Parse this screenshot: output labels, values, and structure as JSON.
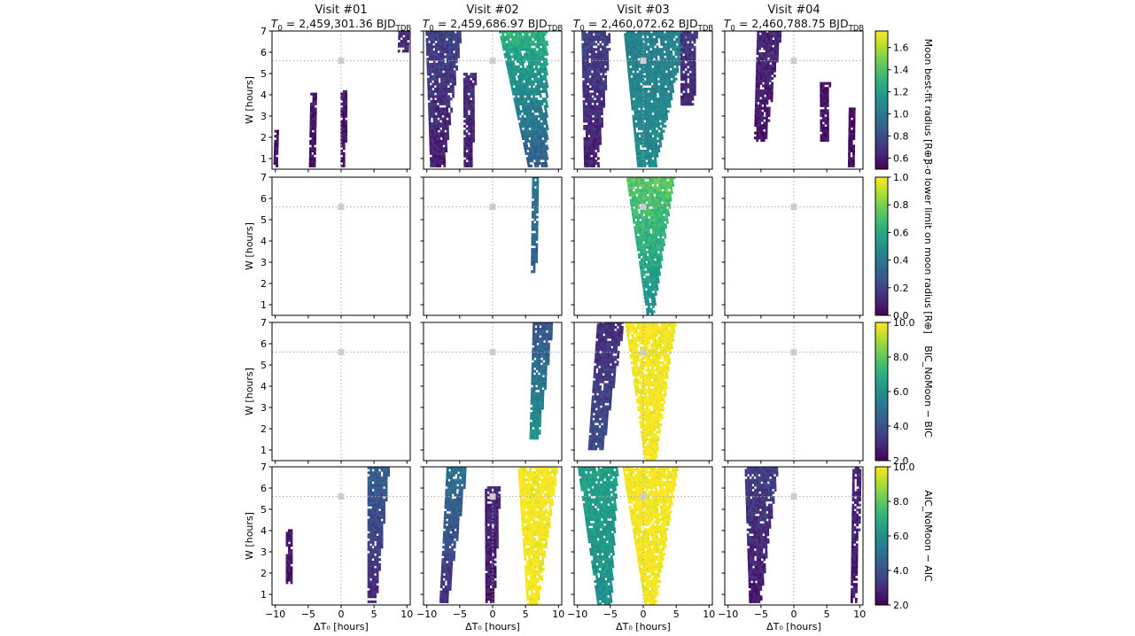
{
  "chart_data": {
    "type": "heatmap",
    "layout": "4x4 grid of panels",
    "columns": [
      {
        "title": "Visit #01",
        "t0_value": "2,459,301.36"
      },
      {
        "title": "Visit #02",
        "t0_value": "2,459,686.97"
      },
      {
        "title": "Visit #03",
        "t0_value": "2,460,072.62"
      },
      {
        "title": "Visit #04",
        "t0_value": "2,460,788.75"
      }
    ],
    "t0_prefix": "T",
    "t0_prefix_sub": "0",
    "t0_unit": "BJD",
    "t0_unit_sub": "TDB",
    "xlabel": "ΔT₀ [hours]",
    "ylabel": "W [hours]",
    "xlim": [
      -10.5,
      10.5
    ],
    "ylim": [
      0.5,
      7
    ],
    "xticks": [
      -10,
      -5,
      0,
      5,
      10
    ],
    "yticks": [
      1,
      2,
      3,
      4,
      5,
      6,
      7
    ],
    "reference_point": {
      "x": 0,
      "y": 5.6
    },
    "grid": "dotted reference lines at x=0 and y=5.6",
    "colormap": "viridis",
    "rows": [
      {
        "colorbar_label": "Moon best-fit radius [R⊕]",
        "clim": [
          0.5,
          1.75
        ],
        "colorbar_ticks": [
          "0.6",
          "0.8",
          "1.0",
          "1.2",
          "1.4",
          "1.6"
        ],
        "colorbar_tick_values": [
          0.6,
          0.8,
          1.0,
          1.2,
          1.4,
          1.6
        ],
        "panels": [
          {
            "regions": [
              {
                "wmin": 0.6,
                "wmax": 2.3,
                "cx0": -10,
                "cx1": -9.4,
                "hw0": 0.3,
                "hw1": 0.3,
                "v0": 0.55,
                "v1": 0.6
              },
              {
                "wmin": 0.6,
                "wmax": 4.0,
                "cx0": -4.5,
                "cx1": -4.0,
                "hw0": 0.4,
                "hw1": 0.5,
                "v0": 0.55,
                "v1": 0.62
              },
              {
                "wmin": 0.6,
                "wmax": 4.2,
                "cx0": 0.2,
                "cx1": 0.4,
                "hw0": 0.3,
                "hw1": 0.5,
                "v0": 0.55,
                "v1": 0.62
              },
              {
                "wmin": 6.0,
                "wmax": 7.0,
                "cx0": 8.5,
                "cx1": 9.5,
                "hw0": 0.5,
                "hw1": 0.8,
                "v0": 0.6,
                "v1": 0.65
              }
            ]
          },
          {
            "regions": [
              {
                "wmin": 0.6,
                "wmax": 7.0,
                "cx0": -8.5,
                "cx1": -7.5,
                "hw0": 1.0,
                "hw1": 2.7,
                "v0": 0.6,
                "v1": 0.75
              },
              {
                "wmin": 0.6,
                "wmax": 5.0,
                "cx0": -3.8,
                "cx1": -3.5,
                "hw0": 0.6,
                "hw1": 1.0,
                "v0": 0.6,
                "v1": 0.7
              },
              {
                "wmin": 0.6,
                "wmax": 7.0,
                "cx0": 6.8,
                "cx1": 4.5,
                "hw0": 1.4,
                "hw1": 3.6,
                "v0": 0.85,
                "v1": 1.3
              }
            ]
          },
          {
            "regions": [
              {
                "wmin": 0.6,
                "wmax": 7.0,
                "cx0": -8.0,
                "cx1": -7.2,
                "hw0": 1.0,
                "hw1": 2.2,
                "v0": 0.6,
                "v1": 0.75
              },
              {
                "wmin": 0.6,
                "wmax": 7.0,
                "cx0": 0.4,
                "cx1": 1.8,
                "hw0": 1.3,
                "hw1": 4.8,
                "v0": 1.1,
                "v1": 1.05
              },
              {
                "wmin": 3.5,
                "wmax": 7.0,
                "cx0": 6.5,
                "cx1": 6.8,
                "hw0": 0.8,
                "hw1": 1.2,
                "v0": 0.6,
                "v1": 0.7
              }
            ]
          },
          {
            "regions": [
              {
                "wmin": 1.8,
                "wmax": 7.0,
                "cx0": -5.6,
                "cx1": -3.8,
                "hw0": 0.6,
                "hw1": 1.8,
                "v0": 0.55,
                "v1": 0.65
              },
              {
                "wmin": 1.8,
                "wmax": 4.5,
                "cx0": 4.5,
                "cx1": 4.7,
                "hw0": 0.5,
                "hw1": 0.8,
                "v0": 0.55,
                "v1": 0.6
              },
              {
                "wmin": 0.6,
                "wmax": 3.3,
                "cx0": 8.6,
                "cx1": 9.0,
                "hw0": 0.4,
                "hw1": 0.5,
                "v0": 0.55,
                "v1": 0.6
              }
            ]
          }
        ]
      },
      {
        "colorbar_label": "3-σ lower limit on moon radius [R⊕]",
        "clim": [
          0.0,
          1.0
        ],
        "colorbar_ticks": [
          "0.0",
          "0.2",
          "0.4",
          "0.6",
          "0.8",
          "1.0"
        ],
        "colorbar_tick_values": [
          0.0,
          0.2,
          0.4,
          0.6,
          0.8,
          1.0
        ],
        "panels": [
          {
            "regions": []
          },
          {
            "regions": [
              {
                "wmin": 2.5,
                "wmax": 7.0,
                "cx0": 6.0,
                "cx1": 6.4,
                "hw0": 0.3,
                "hw1": 0.4,
                "v0": 0.25,
                "v1": 0.4
              }
            ]
          },
          {
            "regions": [
              {
                "wmin": 0.5,
                "wmax": 7.0,
                "cx0": 1.0,
                "cx1": 1.0,
                "hw0": 0.5,
                "hw1": 3.6,
                "v0": 0.5,
                "v1": 0.75
              }
            ]
          },
          {
            "regions": []
          }
        ]
      },
      {
        "colorbar_label": "BIC_NoMoon − BIC",
        "clim": [
          2.0,
          10.0
        ],
        "colorbar_ticks": [
          "2.0",
          "4.0",
          "6.0",
          "8.0",
          "10.0"
        ],
        "colorbar_tick_values": [
          2.0,
          4.0,
          6.0,
          8.0,
          10.0
        ],
        "panels": [
          {
            "regions": []
          },
          {
            "regions": [
              {
                "wmin": 1.5,
                "wmax": 7.0,
                "cx0": 6.0,
                "cx1": 7.6,
                "hw0": 0.5,
                "hw1": 1.5,
                "v0": 6.5,
                "v1": 4.0
              }
            ]
          },
          {
            "regions": [
              {
                "wmin": 0.5,
                "wmax": 7.0,
                "cx0": 1.0,
                "cx1": 1.0,
                "hw0": 0.8,
                "hw1": 3.8,
                "v0": 10.0,
                "v1": 10.0
              },
              {
                "wmin": 1.0,
                "wmax": 7.0,
                "cx0": -7.5,
                "cx1": -5.0,
                "hw0": 1.0,
                "hw1": 2.0,
                "v0": 4.0,
                "v1": 3.0
              }
            ]
          },
          {
            "regions": []
          }
        ]
      },
      {
        "colorbar_label": "AIC_NoMoon − AIC",
        "clim": [
          2.0,
          10.0
        ],
        "colorbar_ticks": [
          "2.0",
          "4.0",
          "6.0",
          "8.0",
          "10.0"
        ],
        "colorbar_tick_values": [
          2.0,
          4.0,
          6.0,
          8.0,
          10.0
        ],
        "panels": [
          {
            "regions": [
              {
                "wmin": 0.6,
                "wmax": 7.0,
                "cx0": 4.6,
                "cx1": 5.6,
                "hw0": 0.6,
                "hw1": 1.6,
                "v0": 2.8,
                "v1": 4.5
              },
              {
                "wmin": 1.5,
                "wmax": 4.0,
                "cx0": -8.0,
                "cx1": -8.0,
                "hw0": 0.4,
                "hw1": 0.4,
                "v0": 2.5,
                "v1": 2.5
              }
            ]
          },
          {
            "regions": [
              {
                "wmin": 0.5,
                "wmax": 7.0,
                "cx0": 6.0,
                "cx1": 6.8,
                "hw0": 0.8,
                "hw1": 3.0,
                "v0": 10.0,
                "v1": 10.0
              },
              {
                "wmin": 0.6,
                "wmax": 7.0,
                "cx0": -7.5,
                "cx1": -5.5,
                "hw0": 0.6,
                "hw1": 1.5,
                "v0": 3.0,
                "v1": 5.0
              },
              {
                "wmin": 0.6,
                "wmax": 6.0,
                "cx0": -0.5,
                "cx1": 0.0,
                "hw0": 0.6,
                "hw1": 1.2,
                "v0": 2.5,
                "v1": 3.0
              }
            ]
          },
          {
            "regions": [
              {
                "wmin": 0.5,
                "wmax": 7.0,
                "cx0": 1.0,
                "cx1": 1.0,
                "hw0": 0.8,
                "hw1": 4.2,
                "v0": 10.0,
                "v1": 10.0
              },
              {
                "wmin": 0.5,
                "wmax": 7.0,
                "cx0": -6.0,
                "cx1": -7.0,
                "hw0": 1.0,
                "hw1": 3.0,
                "v0": 6.0,
                "v1": 6.5
              }
            ]
          },
          {
            "regions": [
              {
                "wmin": 0.6,
                "wmax": 7.0,
                "cx0": -6.0,
                "cx1": -5.0,
                "hw0": 0.8,
                "hw1": 2.5,
                "v0": 2.5,
                "v1": 3.5
              },
              {
                "wmin": 0.6,
                "wmax": 7.0,
                "cx0": 9.0,
                "cx1": 9.5,
                "hw0": 0.4,
                "hw1": 0.6,
                "v0": 2.5,
                "v1": 3.0
              }
            ]
          }
        ]
      }
    ]
  }
}
